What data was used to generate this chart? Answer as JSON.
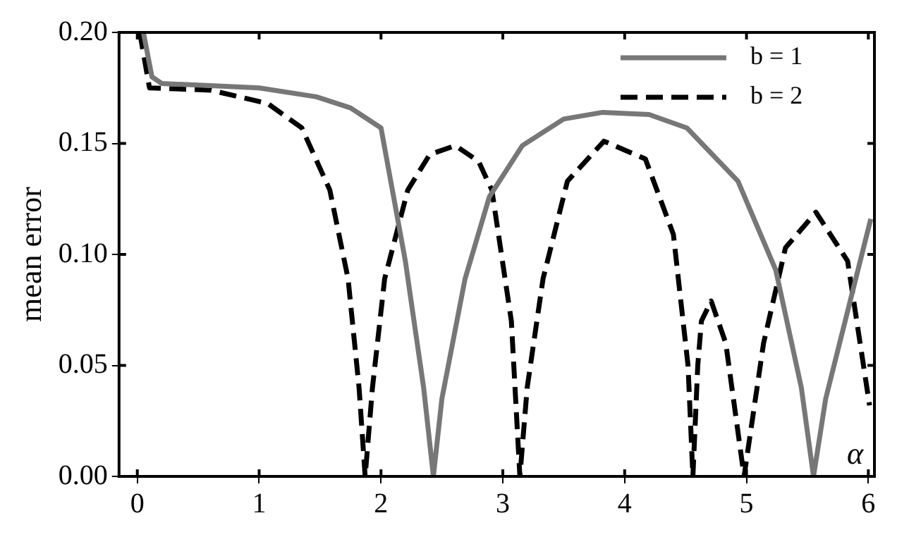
{
  "chart_data": {
    "type": "line",
    "xlabel": "α",
    "ylabel": "mean error",
    "xlim": [
      -0.15,
      6.05
    ],
    "xticks": [
      0,
      1,
      2,
      3,
      4,
      5,
      6
    ],
    "ylim": [
      0,
      0.2
    ],
    "yticks": [
      {
        "value": 0,
        "label": "0.00"
      },
      {
        "value": 0.05,
        "label": "0.05"
      },
      {
        "value": 0.1,
        "label": "0.10"
      },
      {
        "value": 0.15,
        "label": "0.15"
      },
      {
        "value": 0.2,
        "label": "0.20"
      }
    ],
    "grid": false,
    "legend": "top right",
    "marker": "none",
    "series": [
      {
        "name": "b = 1",
        "color": "#777777",
        "line_style": "solid",
        "x": [
          0.05,
          0.12,
          0.2,
          0.6,
          1.0,
          1.47,
          1.75,
          2.0,
          2.2,
          2.35,
          2.43,
          2.5,
          2.69,
          2.89,
          3.16,
          3.5,
          3.82,
          4.2,
          4.51,
          4.93,
          5.24,
          5.45,
          5.55,
          5.65,
          5.86,
          6.02
        ],
        "values": [
          0.2,
          0.18,
          0.177,
          0.176,
          0.175,
          0.171,
          0.166,
          0.157,
          0.097,
          0.04,
          0.0,
          0.035,
          0.089,
          0.126,
          0.149,
          0.161,
          0.164,
          0.163,
          0.157,
          0.133,
          0.093,
          0.04,
          0.0,
          0.035,
          0.081,
          0.116
        ]
      },
      {
        "name": "b = 2",
        "color": "#000000",
        "line_style": "dashed",
        "x": [
          0.02,
          0.1,
          0.6,
          1.07,
          1.35,
          1.58,
          1.73,
          1.82,
          1.87,
          1.93,
          2.03,
          2.22,
          2.4,
          2.61,
          2.8,
          2.91,
          3.07,
          3.14,
          3.2,
          3.33,
          3.53,
          3.83,
          4.17,
          4.4,
          4.52,
          4.56,
          4.6,
          4.63,
          4.71,
          4.83,
          4.98,
          5.14,
          5.32,
          5.57,
          5.83,
          6.01
        ],
        "values": [
          0.2,
          0.175,
          0.174,
          0.168,
          0.157,
          0.129,
          0.089,
          0.04,
          0.0,
          0.04,
          0.089,
          0.129,
          0.145,
          0.149,
          0.142,
          0.129,
          0.07,
          0.0,
          0.04,
          0.089,
          0.133,
          0.151,
          0.143,
          0.109,
          0.05,
          0.0,
          0.05,
          0.07,
          0.079,
          0.06,
          0.0,
          0.06,
          0.103,
          0.119,
          0.097,
          0.032
        ]
      }
    ]
  }
}
